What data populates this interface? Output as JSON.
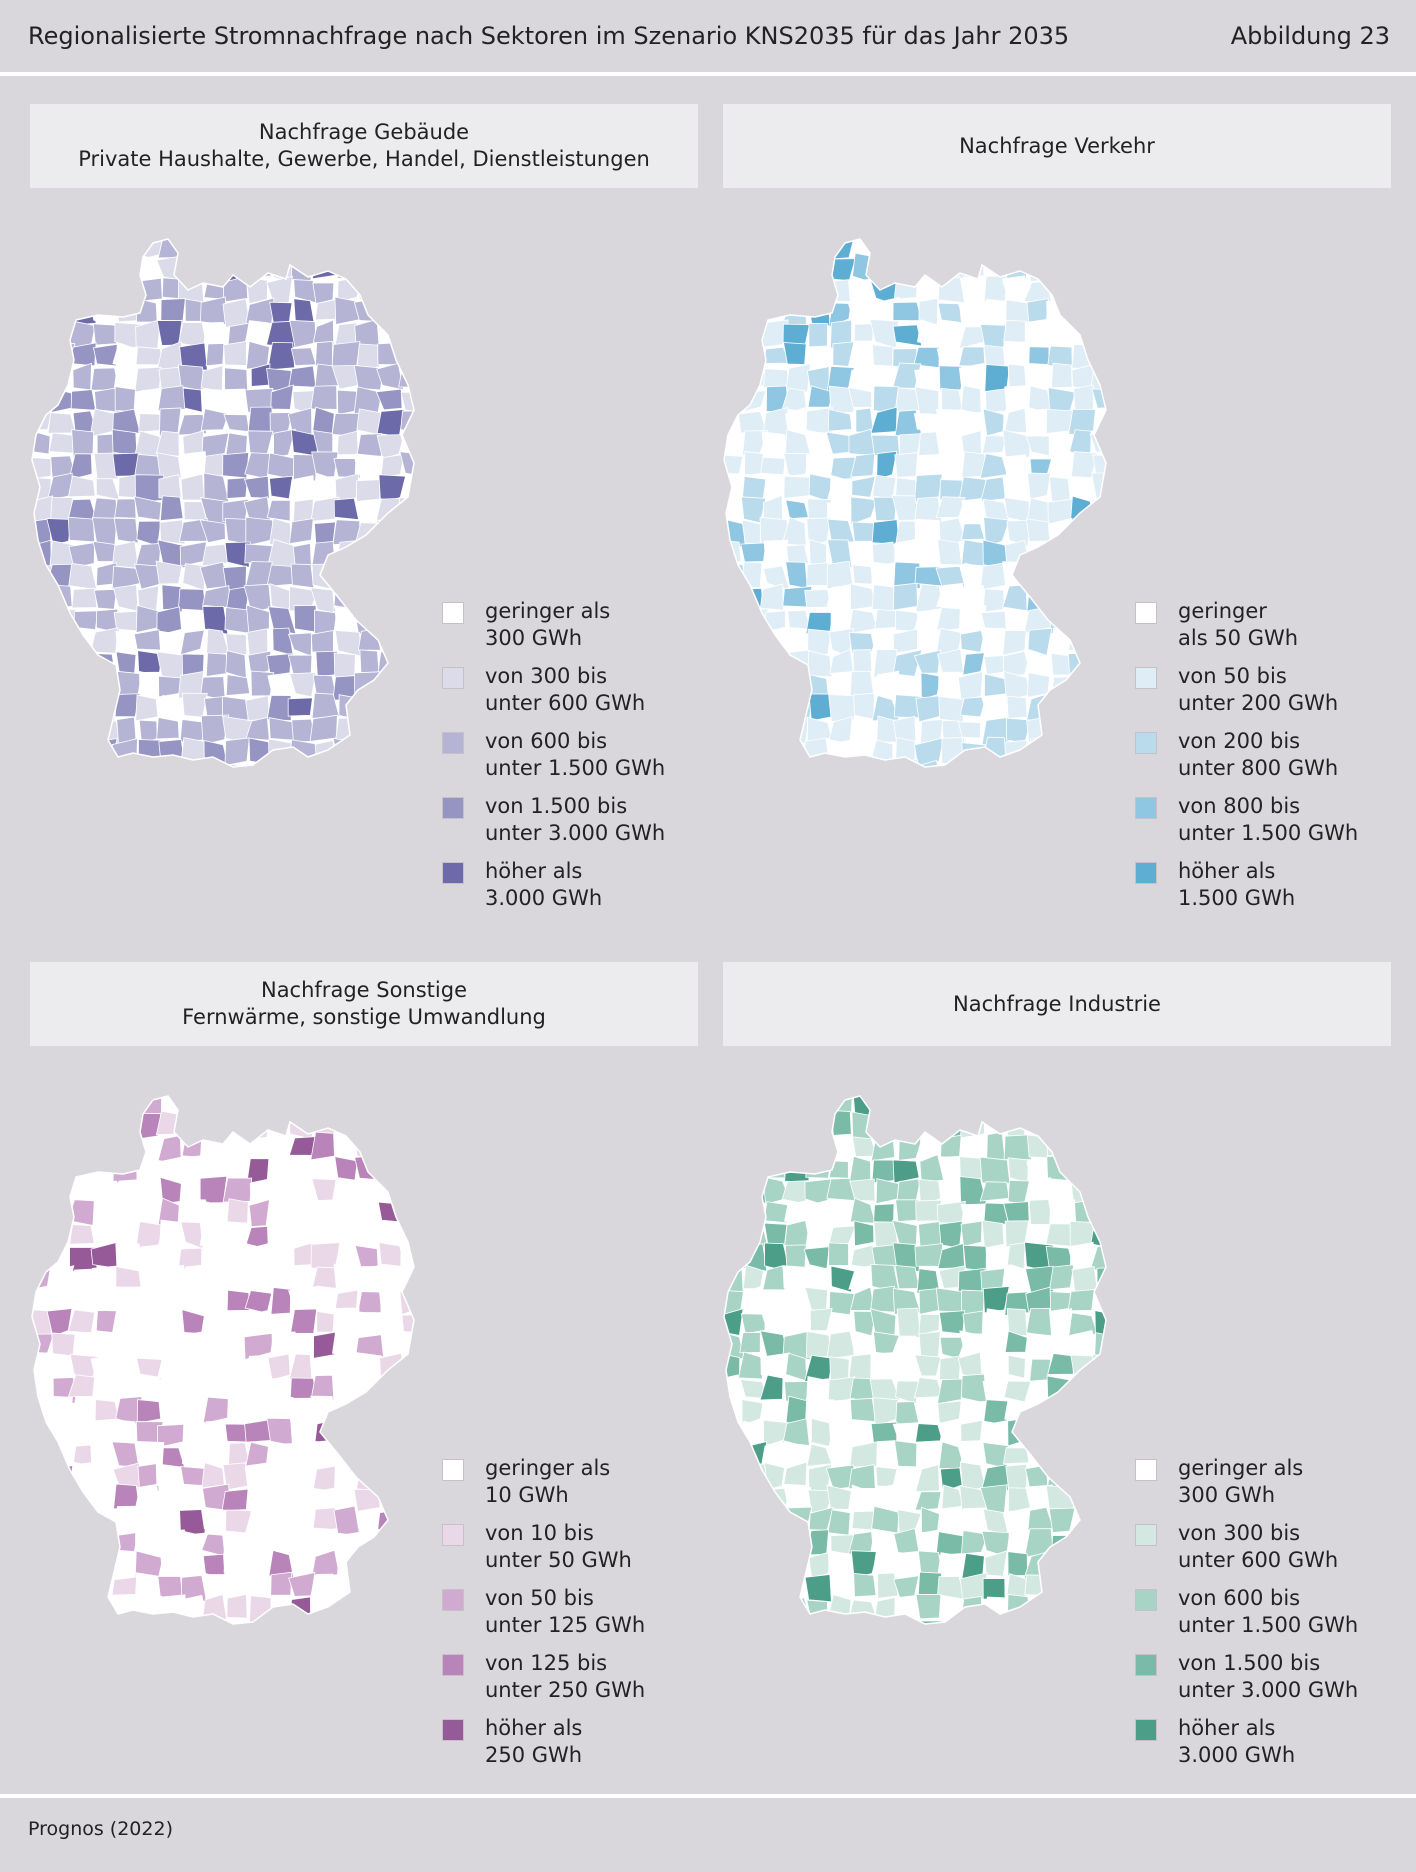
{
  "header": {
    "title": "Regionalisierte Stromnachfrage nach Sektoren im Szenario KNS2035 für das Jahr 2035",
    "figure_label": "Abbildung 23"
  },
  "panels": [
    {
      "id": "gebaeude",
      "title_line1": "Nachfrage Gebäude",
      "title_line2": "Private Haushalte, Gewerbe, Handel, Dienstleistungen",
      "legend": [
        {
          "line1": "geringer als",
          "line2": "300 GWh",
          "color": "#ffffff"
        },
        {
          "line1": "von 300 bis",
          "line2": "unter 600 GWh",
          "color": "#dcdbea"
        },
        {
          "line1": "von 600 bis",
          "line2": "unter 1.500 GWh",
          "color": "#b5b4d5"
        },
        {
          "line1": "von 1.500 bis",
          "line2": "unter 3.000 GWh",
          "color": "#9594c2"
        },
        {
          "line1": "höher als",
          "line2": "3.000 GWh",
          "color": "#6c6aa8"
        }
      ],
      "map_palette": [
        "#ffffff",
        "#dcdbea",
        "#b5b4d5",
        "#9594c2",
        "#6c6aa8"
      ],
      "map_weights": [
        0.06,
        0.22,
        0.5,
        0.17,
        0.05
      ]
    },
    {
      "id": "verkehr",
      "title_line1": "Nachfrage Verkehr",
      "title_line2": "",
      "legend": [
        {
          "line1": "geringer",
          "line2": "als 50 GWh",
          "color": "#ffffff"
        },
        {
          "line1": "von 50 bis",
          "line2": "unter 200 GWh",
          "color": "#dfedf6"
        },
        {
          "line1": "von 200 bis",
          "line2": "unter 800 GWh",
          "color": "#b9dbec"
        },
        {
          "line1": "von 800 bis",
          "line2": "unter 1.500 GWh",
          "color": "#8fc6e1"
        },
        {
          "line1": "höher als",
          "line2": "1.500 GWh",
          "color": "#5eaed4"
        }
      ],
      "map_palette": [
        "#ffffff",
        "#dfedf6",
        "#b9dbec",
        "#8fc6e1",
        "#5eaed4"
      ],
      "map_weights": [
        0.2,
        0.45,
        0.25,
        0.07,
        0.03
      ]
    },
    {
      "id": "sonstige",
      "title_line1": "Nachfrage Sonstige",
      "title_line2": "Fernwärme, sonstige Umwandlung",
      "legend": [
        {
          "line1": "geringer als",
          "line2": "10 GWh",
          "color": "#ffffff"
        },
        {
          "line1": "von 10 bis",
          "line2": "unter 50 GWh",
          "color": "#ead8e9"
        },
        {
          "line1": "von 50 bis",
          "line2": "unter 125 GWh",
          "color": "#d0aad0"
        },
        {
          "line1": "von 125 bis",
          "line2": "unter 250 GWh",
          "color": "#b884b9"
        },
        {
          "line1": "höher als",
          "line2": "250 GWh",
          "color": "#965a99"
        }
      ],
      "map_palette": [
        "#ffffff",
        "#ead8e9",
        "#d0aad0",
        "#b884b9",
        "#965a99"
      ],
      "map_weights": [
        0.66,
        0.12,
        0.12,
        0.06,
        0.04
      ]
    },
    {
      "id": "industrie",
      "title_line1": "Nachfrage Industrie",
      "title_line2": "",
      "legend": [
        {
          "line1": "geringer als",
          "line2": "300 GWh",
          "color": "#ffffff"
        },
        {
          "line1": "von 300 bis",
          "line2": "unter 600 GWh",
          "color": "#d3e8e1"
        },
        {
          "line1": "von 600 bis",
          "line2": "unter 1.500 GWh",
          "color": "#a8d4c5"
        },
        {
          "line1": "von 1.500 bis",
          "line2": "unter 3.000 GWh",
          "color": "#79bba6"
        },
        {
          "line1": "höher als",
          "line2": "3.000 GWh",
          "color": "#4c9e89"
        }
      ],
      "map_palette": [
        "#ffffff",
        "#d3e8e1",
        "#a8d4c5",
        "#79bba6",
        "#4c9e89"
      ],
      "map_weights": [
        0.25,
        0.3,
        0.3,
        0.11,
        0.04
      ]
    }
  ],
  "source": "Prognos (2022)"
}
